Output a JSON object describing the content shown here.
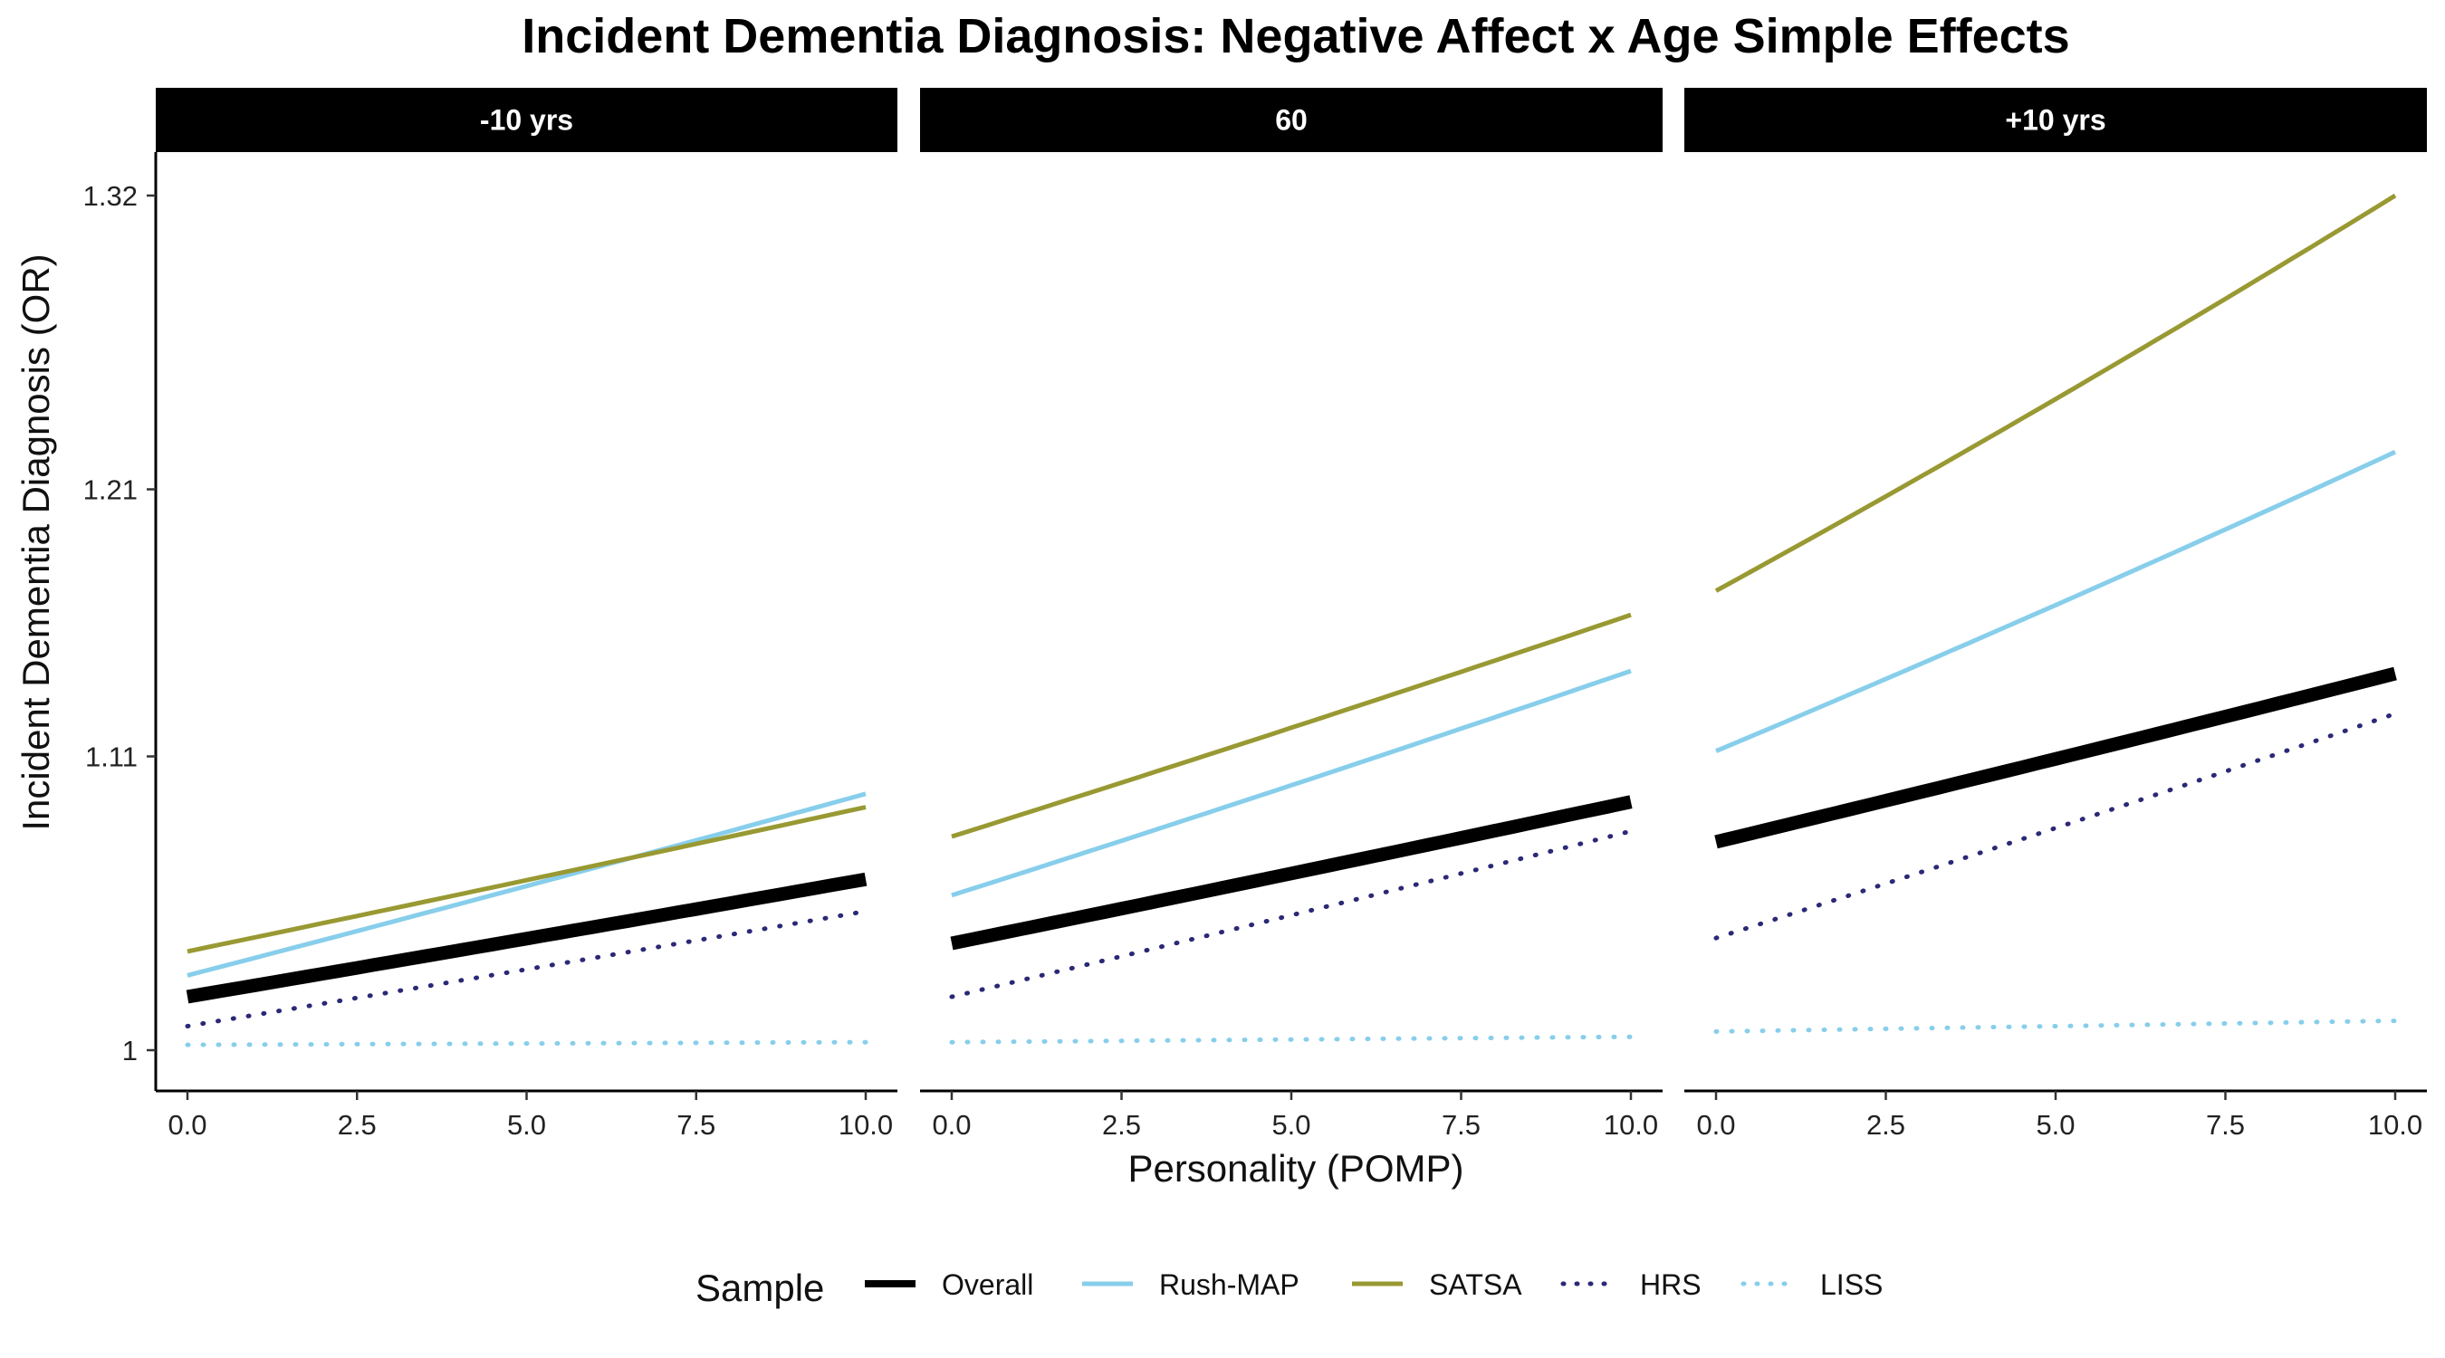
{
  "chart_data": {
    "type": "line",
    "title": "Incident Dementia Diagnosis: Negative Affect x Age Simple Effects",
    "xlabel": "Personality (POMP)",
    "ylabel": "Incident Dementia Diagnosis (OR)",
    "facets": [
      "-10 yrs",
      "60",
      "+10 yrs"
    ],
    "x_ticks": [
      "0.0",
      "2.5",
      "5.0",
      "7.5",
      "10.0"
    ],
    "xlim": [
      0,
      10
    ],
    "y_ticks": [
      {
        "value": 1.0,
        "label": "1"
      },
      {
        "value": 1.11,
        "label": "1.11"
      },
      {
        "value": 1.21,
        "label": "1.21"
      },
      {
        "value": 1.32,
        "label": "1.32"
      }
    ],
    "ylim": [
      0.985,
      1.335
    ],
    "legend": {
      "title": "Sample",
      "position": "bottom"
    },
    "series": [
      {
        "name": "Overall",
        "color": "#000000",
        "style": "solid",
        "weight": "thick",
        "values": [
          [
            1.02,
            1.064
          ],
          [
            1.04,
            1.093
          ],
          [
            1.078,
            1.141
          ]
        ]
      },
      {
        "name": "Rush-MAP",
        "color": "#87CEEB",
        "style": "solid",
        "weight": "normal",
        "values": [
          [
            1.028,
            1.096
          ],
          [
            1.058,
            1.142
          ],
          [
            1.112,
            1.224
          ]
        ]
      },
      {
        "name": "SATSA",
        "color": "#999933",
        "style": "solid",
        "weight": "normal",
        "values": [
          [
            1.037,
            1.091
          ],
          [
            1.08,
            1.163
          ],
          [
            1.172,
            1.32
          ]
        ]
      },
      {
        "name": "HRS",
        "color": "#2B2876",
        "style": "dotted",
        "weight": "normal",
        "values": [
          [
            1.009,
            1.052
          ],
          [
            1.02,
            1.082
          ],
          [
            1.042,
            1.126
          ]
        ]
      },
      {
        "name": "LISS",
        "color": "#87CEEB",
        "style": "dotted",
        "weight": "normal",
        "values": [
          [
            1.002,
            1.003
          ],
          [
            1.003,
            1.005
          ],
          [
            1.007,
            1.011
          ]
        ]
      }
    ]
  }
}
